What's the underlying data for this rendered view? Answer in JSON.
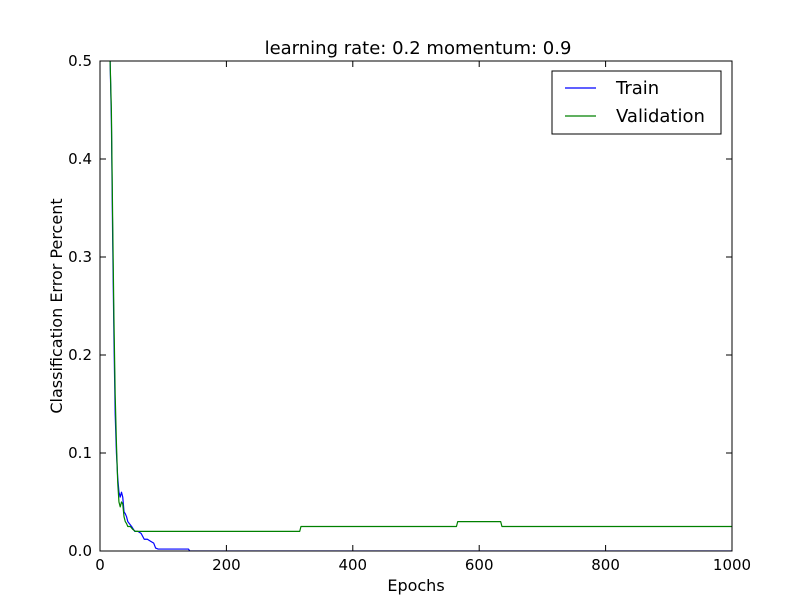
{
  "chart_data": {
    "type": "line",
    "title": "learning rate: 0.2 momentum: 0.9",
    "xlabel": "Epochs",
    "ylabel": "Classification Error Percent",
    "xlim": [
      0,
      1000
    ],
    "ylim": [
      0,
      0.5
    ],
    "x_ticks": [
      0,
      200,
      400,
      600,
      800,
      1000
    ],
    "y_ticks": [
      0.0,
      0.1,
      0.2,
      0.3,
      0.4,
      0.5
    ],
    "x_tick_labels": [
      "0",
      "200",
      "400",
      "600",
      "800",
      "1000"
    ],
    "y_tick_labels": [
      "0.0",
      "0.1",
      "0.2",
      "0.3",
      "0.4",
      "0.5"
    ],
    "grid": false,
    "legend": {
      "position": "top-right",
      "entries": [
        "Train",
        "Validation"
      ]
    },
    "series": [
      {
        "name": "Train",
        "color": "#0000ff",
        "points": [
          [
            16,
            0.5
          ],
          [
            18,
            0.44
          ],
          [
            20,
            0.32
          ],
          [
            22,
            0.22
          ],
          [
            24,
            0.14
          ],
          [
            26,
            0.1
          ],
          [
            28,
            0.075
          ],
          [
            30,
            0.06
          ],
          [
            32,
            0.055
          ],
          [
            34,
            0.06
          ],
          [
            36,
            0.055
          ],
          [
            38,
            0.04
          ],
          [
            40,
            0.038
          ],
          [
            42,
            0.035
          ],
          [
            44,
            0.03
          ],
          [
            50,
            0.025
          ],
          [
            55,
            0.02
          ],
          [
            60,
            0.02
          ],
          [
            65,
            0.018
          ],
          [
            70,
            0.012
          ],
          [
            75,
            0.012
          ],
          [
            80,
            0.01
          ],
          [
            85,
            0.008
          ],
          [
            88,
            0.003
          ],
          [
            92,
            0.002
          ],
          [
            100,
            0.002
          ],
          [
            110,
            0.002
          ],
          [
            120,
            0.002
          ],
          [
            140,
            0.002
          ],
          [
            142,
            0.0
          ],
          [
            1000,
            0.0
          ]
        ]
      },
      {
        "name": "Validation",
        "color": "#008000",
        "points": [
          [
            16,
            0.5
          ],
          [
            18,
            0.45
          ],
          [
            20,
            0.34
          ],
          [
            22,
            0.24
          ],
          [
            24,
            0.16
          ],
          [
            26,
            0.11
          ],
          [
            28,
            0.07
          ],
          [
            30,
            0.05
          ],
          [
            32,
            0.045
          ],
          [
            34,
            0.05
          ],
          [
            36,
            0.048
          ],
          [
            38,
            0.035
          ],
          [
            40,
            0.03
          ],
          [
            42,
            0.028
          ],
          [
            44,
            0.025
          ],
          [
            48,
            0.025
          ],
          [
            52,
            0.022
          ],
          [
            56,
            0.02
          ],
          [
            60,
            0.02
          ],
          [
            65,
            0.02
          ],
          [
            70,
            0.02
          ],
          [
            316,
            0.02
          ],
          [
            318,
            0.025
          ],
          [
            564,
            0.025
          ],
          [
            566,
            0.03
          ],
          [
            634,
            0.03
          ],
          [
            636,
            0.025
          ],
          [
            1000,
            0.025
          ]
        ]
      }
    ]
  }
}
